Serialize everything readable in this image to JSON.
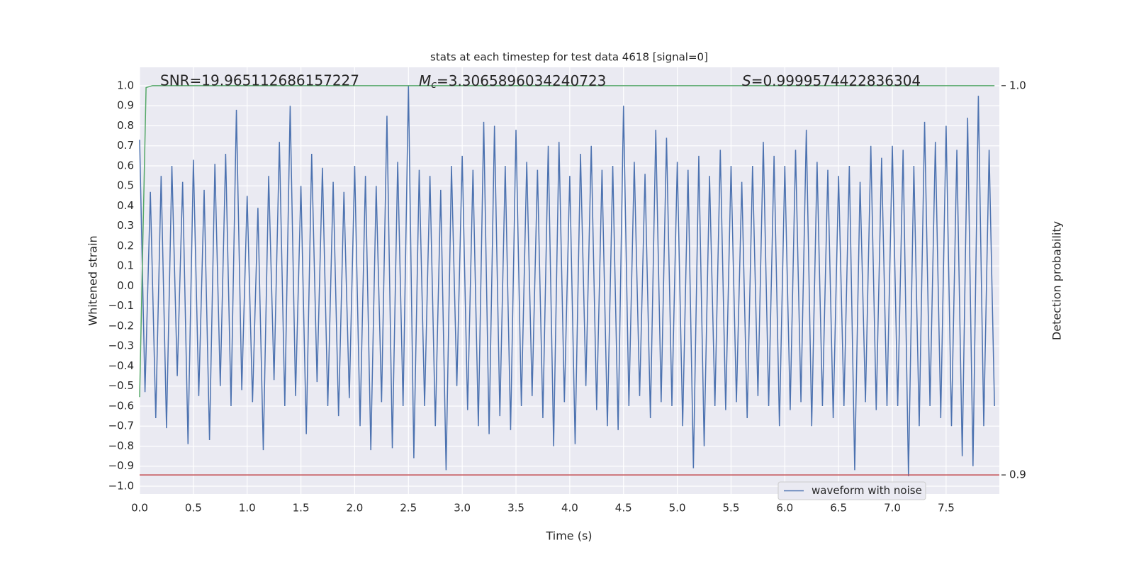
{
  "chart_data": {
    "type": "line",
    "title": "stats at each timestep for test data 4618 [signal=0]",
    "xlabel": "Time (s)",
    "ylabel": "Whitened strain",
    "y2label": "Detection probability",
    "annotations": [
      {
        "text": "SNR=19.965112686157227"
      },
      {
        "symbol": "M",
        "subscript": "c",
        "text": "=3.3065896034240723"
      },
      {
        "symbol": "S",
        "text": "=0.9999574422836304"
      }
    ],
    "grid": true,
    "legend": "lower right",
    "xlim": [
      0,
      7.995
    ],
    "ylim": [
      -1.039,
      1.092
    ],
    "y2lim": [
      0.8951,
      1.0047
    ],
    "xticks": [
      {
        "value": 0,
        "label": "0.0"
      },
      {
        "value": 0.5,
        "label": "0.5"
      },
      {
        "value": 1,
        "label": "1.0"
      },
      {
        "value": 1.5,
        "label": "1.5"
      },
      {
        "value": 2,
        "label": "2.0"
      },
      {
        "value": 2.5,
        "label": "2.5"
      },
      {
        "value": 3,
        "label": "3.0"
      },
      {
        "value": 3.5,
        "label": "3.5"
      },
      {
        "value": 4,
        "label": "4.0"
      },
      {
        "value": 4.5,
        "label": "4.5"
      },
      {
        "value": 5,
        "label": "5.0"
      },
      {
        "value": 5.5,
        "label": "5.5"
      },
      {
        "value": 6,
        "label": "6.0"
      },
      {
        "value": 6.5,
        "label": "6.5"
      },
      {
        "value": 7,
        "label": "7.0"
      },
      {
        "value": 7.5,
        "label": "7.5"
      }
    ],
    "yticks": [
      {
        "value": -1,
        "label": "−1.0"
      },
      {
        "value": -0.9,
        "label": "−0.9"
      },
      {
        "value": -0.8,
        "label": "−0.8"
      },
      {
        "value": -0.7,
        "label": "−0.7"
      },
      {
        "value": -0.6,
        "label": "−0.6"
      },
      {
        "value": -0.5,
        "label": "−0.5"
      },
      {
        "value": -0.4,
        "label": "−0.4"
      },
      {
        "value": -0.3,
        "label": "−0.3"
      },
      {
        "value": -0.2,
        "label": "−0.2"
      },
      {
        "value": -0.1,
        "label": "−0.1"
      },
      {
        "value": 0,
        "label": "0.0"
      },
      {
        "value": 0.1,
        "label": "0.1"
      },
      {
        "value": 0.2,
        "label": "0.2"
      },
      {
        "value": 0.3,
        "label": "0.3"
      },
      {
        "value": 0.4,
        "label": "0.4"
      },
      {
        "value": 0.5,
        "label": "0.5"
      },
      {
        "value": 0.6,
        "label": "0.6"
      },
      {
        "value": 0.7,
        "label": "0.7"
      },
      {
        "value": 0.8,
        "label": "0.8"
      },
      {
        "value": 0.9,
        "label": "0.9"
      },
      {
        "value": 1,
        "label": "1.0"
      }
    ],
    "y2ticks": [
      {
        "value": 0.9,
        "label": "0.9"
      },
      {
        "value": 1,
        "label": "1.0"
      }
    ],
    "series": [
      {
        "name": "waveform with noise",
        "color": "#4c72b0",
        "x": [
          0,
          0.05,
          0.1,
          0.15,
          0.2,
          0.25,
          0.3,
          0.35,
          0.4,
          0.45,
          0.5,
          0.55,
          0.6,
          0.65,
          0.7,
          0.75,
          0.8,
          0.85,
          0.9,
          0.95,
          1,
          1.05,
          1.1,
          1.15,
          1.2,
          1.25,
          1.3,
          1.35,
          1.4,
          1.45,
          1.5,
          1.55,
          1.6,
          1.65,
          1.7,
          1.75,
          1.8,
          1.85,
          1.9,
          1.95,
          2,
          2.05,
          2.1,
          2.15,
          2.2,
          2.25,
          2.3,
          2.35,
          2.4,
          2.45,
          2.5,
          2.55,
          2.6,
          2.65,
          2.7,
          2.75,
          2.8,
          2.85,
          2.9,
          2.95,
          3,
          3.05,
          3.1,
          3.15,
          3.2,
          3.25,
          3.3,
          3.35,
          3.4,
          3.45,
          3.5,
          3.55,
          3.6,
          3.65,
          3.7,
          3.75,
          3.8,
          3.85,
          3.9,
          3.95,
          4,
          4.05,
          4.1,
          4.15,
          4.2,
          4.25,
          4.3,
          4.35,
          4.4,
          4.45,
          4.5,
          4.55,
          4.6,
          4.65,
          4.7,
          4.75,
          4.8,
          4.85,
          4.9,
          4.95,
          5,
          5.05,
          5.1,
          5.15,
          5.2,
          5.25,
          5.3,
          5.35,
          5.4,
          5.45,
          5.5,
          5.55,
          5.6,
          5.65,
          5.7,
          5.75,
          5.8,
          5.85,
          5.9,
          5.95,
          6,
          6.05,
          6.1,
          6.15,
          6.2,
          6.25,
          6.3,
          6.35,
          6.4,
          6.45,
          6.5,
          6.55,
          6.6,
          6.65,
          6.7,
          6.75,
          6.8,
          6.85,
          6.9,
          6.95,
          7,
          7.05,
          7.1,
          7.15,
          7.2,
          7.25,
          7.3,
          7.35,
          7.4,
          7.45,
          7.5,
          7.55,
          7.6,
          7.65,
          7.7,
          7.75,
          7.8,
          7.85,
          7.9,
          7.95
        ],
        "values": [
          0.73,
          -0.53,
          0.47,
          -0.66,
          0.55,
          -0.71,
          0.6,
          -0.45,
          0.52,
          -0.79,
          0.63,
          -0.55,
          0.48,
          -0.77,
          0.61,
          -0.5,
          0.66,
          -0.6,
          0.88,
          -0.52,
          0.45,
          -0.58,
          0.39,
          -0.82,
          0.55,
          -0.47,
          0.72,
          -0.6,
          0.9,
          -0.55,
          0.5,
          -0.74,
          0.66,
          -0.48,
          0.59,
          -0.6,
          0.52,
          -0.65,
          0.47,
          -0.56,
          0.6,
          -0.7,
          0.55,
          -0.82,
          0.5,
          -0.58,
          0.85,
          -0.81,
          0.62,
          -0.6,
          1.0,
          -0.86,
          0.58,
          -0.6,
          0.55,
          -0.7,
          0.48,
          -0.92,
          0.6,
          -0.5,
          0.65,
          -0.62,
          0.58,
          -0.7,
          0.82,
          -0.74,
          0.8,
          -0.65,
          0.6,
          -0.72,
          0.78,
          -0.6,
          0.62,
          -0.55,
          0.58,
          -0.66,
          0.7,
          -0.8,
          0.72,
          -0.58,
          0.55,
          -0.79,
          0.66,
          -0.5,
          0.7,
          -0.62,
          0.58,
          -0.7,
          0.6,
          -0.72,
          0.9,
          -0.6,
          0.62,
          -0.55,
          0.56,
          -0.66,
          0.78,
          -0.58,
          0.74,
          -0.6,
          0.62,
          -0.7,
          0.58,
          -0.91,
          0.65,
          -0.8,
          0.55,
          -0.6,
          0.68,
          -0.62,
          0.6,
          -0.58,
          0.52,
          -0.66,
          0.6,
          -0.55,
          0.72,
          -0.6,
          0.65,
          -0.7,
          0.6,
          -0.62,
          0.68,
          -0.58,
          0.78,
          -0.7,
          0.62,
          -0.6,
          0.58,
          -0.66,
          0.55,
          -0.6,
          0.6,
          -0.92,
          0.52,
          -0.58,
          0.7,
          -0.62,
          0.64,
          -0.6,
          0.7,
          -0.6,
          0.68,
          -0.95,
          0.6,
          -0.7,
          0.82,
          -0.6,
          0.72,
          -0.66,
          0.8,
          -0.7,
          0.68,
          -0.85,
          0.84,
          -0.9,
          0.95,
          -0.7,
          0.68,
          -0.6
        ]
      }
    ],
    "probability": {
      "axis": "y2",
      "color": "#55a868",
      "x": [
        0,
        0.03,
        0.06,
        0.12,
        7.95
      ],
      "values": [
        0.92,
        0.96,
        0.9995,
        1.0,
        1.0
      ]
    },
    "threshold": {
      "axis": "y2",
      "color": "#c44e52",
      "value": 0.9
    }
  }
}
